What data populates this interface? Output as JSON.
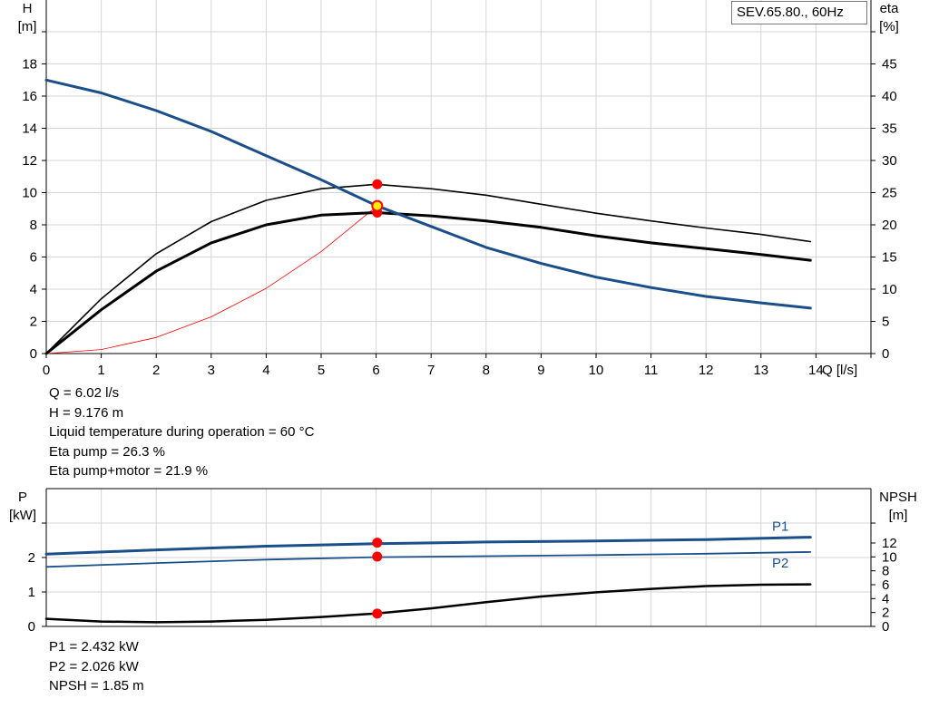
{
  "colors": {
    "blue": "#1a4f8a",
    "black": "#000000",
    "red": "#ff0000",
    "grid": "#d6d6d6",
    "op_yellow": "#ffee00"
  },
  "legend_label": "SEV.65.80., 60Hz",
  "upper_info": [
    "Q = 6.02 l/s",
    "H = 9.176 m",
    "Liquid temperature during operation = 60 °C",
    "Eta pump = 26.3 %",
    "Eta pump+motor = 21.9 %"
  ],
  "lower_info": [
    "P1 = 2.432 kW",
    "P2 = 2.026 kW",
    "NPSH = 1.85 m"
  ],
  "chart_data": [
    {
      "type": "line",
      "title": "SEV.65.80., 60Hz",
      "xlabel": "Q [l/s]",
      "ylabel_left_line1": "H",
      "ylabel_left_line2": "[m]",
      "ylabel_right_line1": "eta",
      "ylabel_right_line2": "[%]",
      "xlim": [
        0,
        15
      ],
      "ylim_left": [
        0,
        20
      ],
      "ylim_right": [
        0,
        50
      ],
      "x_ticks": [
        0,
        1,
        2,
        3,
        4,
        5,
        6,
        7,
        8,
        9,
        10,
        11,
        12,
        13,
        14
      ],
      "y_ticks_left": [
        0,
        2,
        4,
        6,
        8,
        10,
        12,
        14,
        16,
        18
      ],
      "y_ticks_right": [
        0,
        5,
        10,
        15,
        20,
        25,
        30,
        35,
        40,
        45
      ],
      "grid": true,
      "series": [
        {
          "key": "H",
          "axis": "left",
          "color": "#1a4f8a",
          "width": 3,
          "x": [
            0,
            1,
            2,
            3,
            4,
            5,
            6,
            7,
            8,
            9,
            10,
            11,
            12,
            13,
            13.9
          ],
          "y": [
            17.0,
            16.2,
            15.1,
            13.8,
            12.3,
            10.8,
            9.2,
            7.9,
            6.6,
            5.6,
            4.75,
            4.1,
            3.55,
            3.15,
            2.82
          ]
        },
        {
          "key": "eta_pump",
          "axis": "right",
          "color": "#000000",
          "width": 1.6,
          "x": [
            0,
            1,
            2,
            3,
            4,
            5,
            6,
            7,
            8,
            9,
            10,
            11,
            12,
            13,
            13.9
          ],
          "y": [
            0,
            8.5,
            15.5,
            20.5,
            23.8,
            25.6,
            26.3,
            25.6,
            24.6,
            23.2,
            21.8,
            20.6,
            19.5,
            18.5,
            17.4
          ]
        },
        {
          "key": "eta_pump_motor",
          "axis": "right",
          "color": "#000000",
          "width": 3,
          "x": [
            0,
            1,
            2,
            3,
            4,
            5,
            6,
            7,
            8,
            9,
            10,
            11,
            12,
            13,
            13.9
          ],
          "y": [
            0,
            6.8,
            12.8,
            17.2,
            20.0,
            21.5,
            21.9,
            21.4,
            20.6,
            19.6,
            18.3,
            17.2,
            16.3,
            15.4,
            14.5
          ]
        },
        {
          "key": "system",
          "axis": "left",
          "color": "#ff0000",
          "width": 0.8,
          "x": [
            0,
            1,
            2,
            3,
            4,
            5,
            6.02
          ],
          "y": [
            0,
            0.25,
            1.0,
            2.28,
            4.05,
            6.33,
            9.176
          ]
        }
      ],
      "points": [
        {
          "axis": "right",
          "x": 6.02,
          "y": 26.3,
          "color": "#ff0000"
        },
        {
          "axis": "right",
          "x": 6.02,
          "y": 21.9,
          "color": "#ff0000"
        },
        {
          "axis": "left",
          "x": 6.02,
          "y": 9.176,
          "color": "#ffee00"
        }
      ]
    },
    {
      "type": "line",
      "ylabel_left_line1": "P",
      "ylabel_left_line2": "[kW]",
      "ylabel_right_line1": "NPSH",
      "ylabel_right_line2": "[m]",
      "xlim": [
        0,
        15
      ],
      "ylim_left": [
        0,
        3
      ],
      "ylim_right": [
        0,
        18
      ],
      "y_ticks_left": [
        0,
        1,
        2
      ],
      "y_ticks_right": [
        0,
        2,
        4,
        6,
        8,
        10,
        12
      ],
      "grid": true,
      "series": [
        {
          "key": "P1",
          "name": "P1",
          "axis": "left",
          "color": "#1a4f8a",
          "width": 3,
          "x": [
            0,
            2,
            4,
            6,
            8,
            10,
            12,
            13.9
          ],
          "y": [
            2.1,
            2.22,
            2.33,
            2.4,
            2.45,
            2.48,
            2.52,
            2.59
          ]
        },
        {
          "key": "P2",
          "name": "P2",
          "axis": "left",
          "color": "#1a4f8a",
          "width": 1.8,
          "x": [
            0,
            2,
            4,
            6,
            8,
            10,
            12,
            13.9
          ],
          "y": [
            1.73,
            1.84,
            1.94,
            2.01,
            2.04,
            2.07,
            2.11,
            2.16
          ]
        },
        {
          "key": "NPSH",
          "axis": "right",
          "color": "#000000",
          "width": 2.5,
          "x": [
            0,
            1,
            2,
            3,
            4,
            5,
            6,
            7,
            8,
            9,
            10,
            11,
            12,
            13,
            13.9
          ],
          "y": [
            1.1,
            0.7,
            0.6,
            0.7,
            0.95,
            1.35,
            1.85,
            2.6,
            3.5,
            4.3,
            4.9,
            5.4,
            5.8,
            6.0,
            6.05
          ]
        }
      ],
      "points": [
        {
          "axis": "left",
          "x": 6.02,
          "y": 2.432,
          "color": "#ff0000"
        },
        {
          "axis": "left",
          "x": 6.02,
          "y": 2.026,
          "color": "#ff0000"
        },
        {
          "axis": "right",
          "x": 6.02,
          "y": 1.85,
          "color": "#ff0000"
        }
      ]
    }
  ]
}
